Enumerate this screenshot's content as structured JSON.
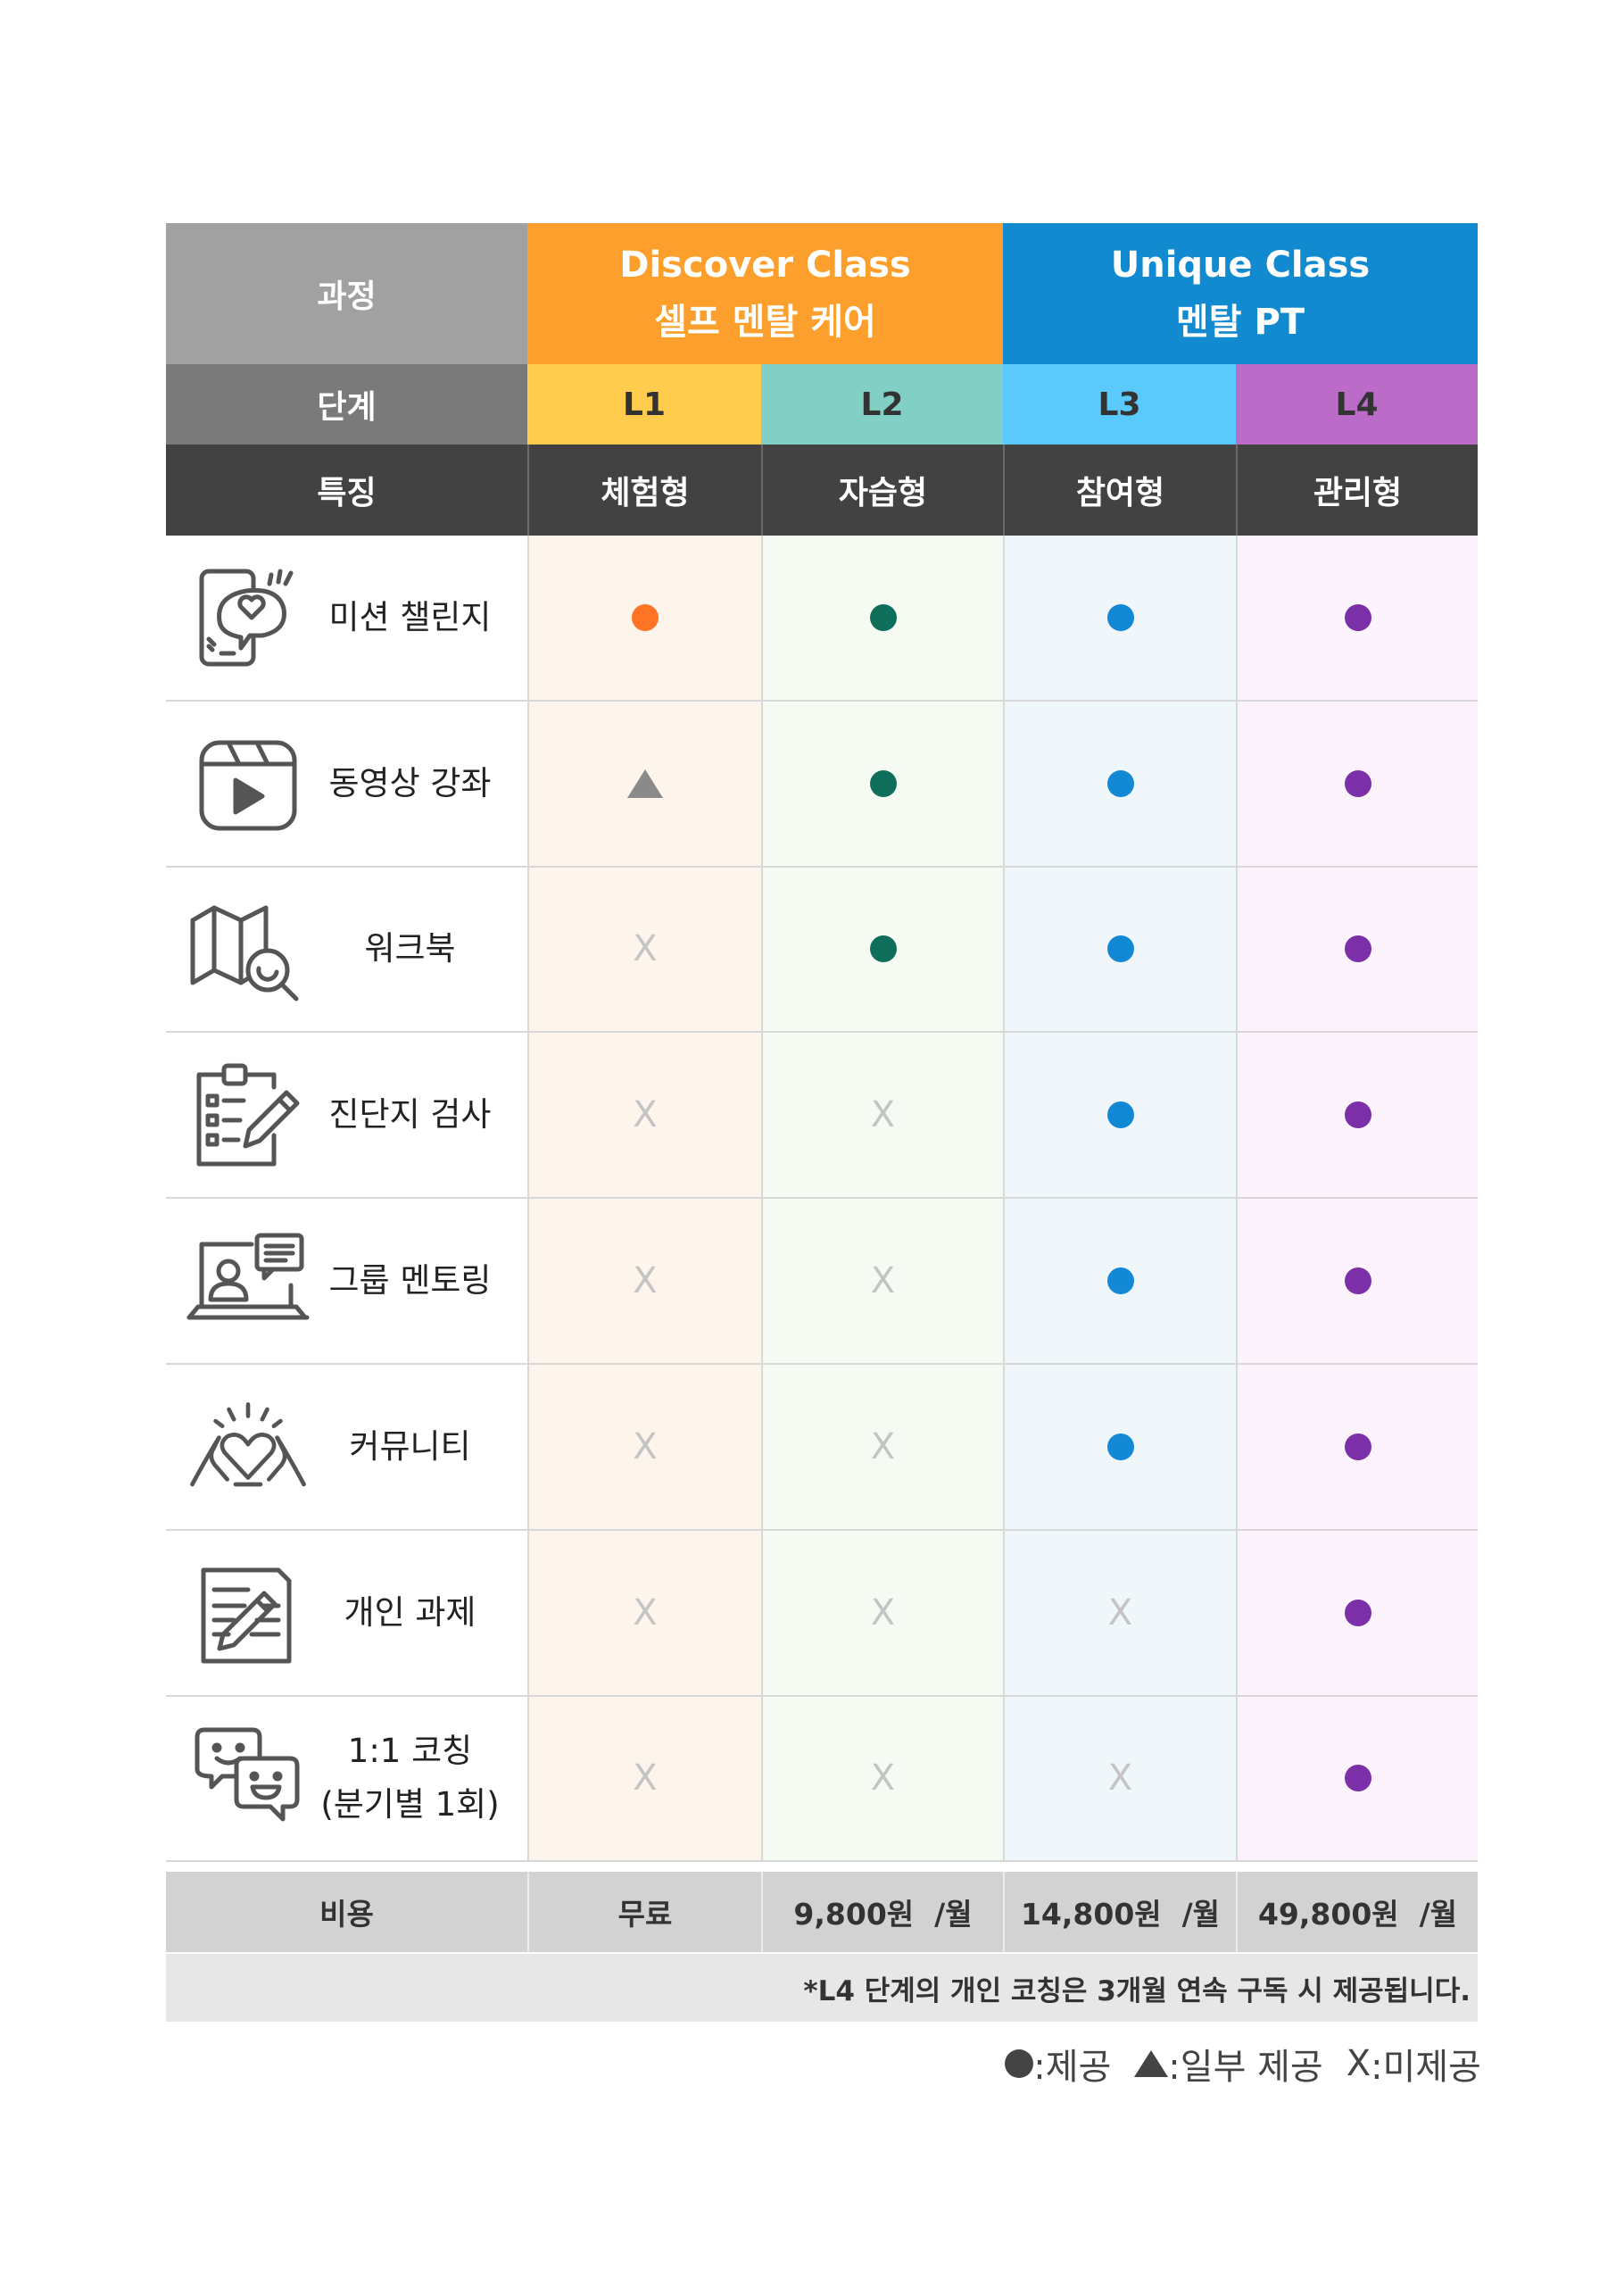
{
  "header": {
    "course_label": "과정",
    "stage_label": "단계",
    "feature_label": "특징",
    "discover": {
      "title": "Discover Class",
      "subtitle": "셀프 멘탈 케어",
      "color": "#fd9f2c"
    },
    "unique": {
      "title": "Unique Class",
      "subtitle": "멘탈 PT",
      "color": "#128acf"
    }
  },
  "levels": [
    {
      "name": "L1",
      "type": "체험형",
      "color": "#ffcc4e",
      "bg": "#fdf5eb"
    },
    {
      "name": "L2",
      "type": "자습형",
      "color": "#82cfc6",
      "bg": "#f5fbf2"
    },
    {
      "name": "L3",
      "type": "참여형",
      "color": "#5ac9fb",
      "bg": "#f0f7fb"
    },
    {
      "name": "L4",
      "type": "관리형",
      "color": "#ba6cc8",
      "bg": "#fdf3fd"
    }
  ],
  "features": [
    {
      "label": "미션 챌린지",
      "icon": "phone-heart-icon"
    },
    {
      "label": "동영상 강좌",
      "icon": "video-play-icon"
    },
    {
      "label": "워크북",
      "icon": "map-search-icon"
    },
    {
      "label": "진단지 검사",
      "icon": "clipboard-pen-icon"
    },
    {
      "label": "그룹 멘토링",
      "icon": "laptop-mentor-icon"
    },
    {
      "label": "커뮤니티",
      "icon": "heart-hands-icon"
    },
    {
      "label": "개인 과제",
      "icon": "document-pen-icon"
    },
    {
      "label": "1:1 코칭",
      "label2": "(분기별 1회)",
      "icon": "chat-faces-icon"
    }
  ],
  "matrix": [
    [
      "dot",
      "dot",
      "dot",
      "dot"
    ],
    [
      "triangle",
      "dot",
      "dot",
      "dot"
    ],
    [
      "x",
      "dot",
      "dot",
      "dot"
    ],
    [
      "x",
      "x",
      "dot",
      "dot"
    ],
    [
      "x",
      "x",
      "dot",
      "dot"
    ],
    [
      "x",
      "x",
      "dot",
      "dot"
    ],
    [
      "x",
      "x",
      "x",
      "dot"
    ],
    [
      "x",
      "x",
      "x",
      "dot"
    ]
  ],
  "dot_colors": [
    "#ff7424",
    "#0f6e5a",
    "#1388d4",
    "#7b2fa8"
  ],
  "x_text": "X",
  "price": {
    "label": "비용",
    "values": [
      "무료",
      "9,800원  /월",
      "14,800원  /월",
      "49,800원  /월"
    ]
  },
  "note": "*L4 단계의 개인 코칭은 3개월 연속 구독 시 제공됩니다.",
  "legend": {
    "dot": ":제공",
    "triangle": ":일부 제공",
    "x_symbol": "X",
    "x": ":미제공"
  }
}
